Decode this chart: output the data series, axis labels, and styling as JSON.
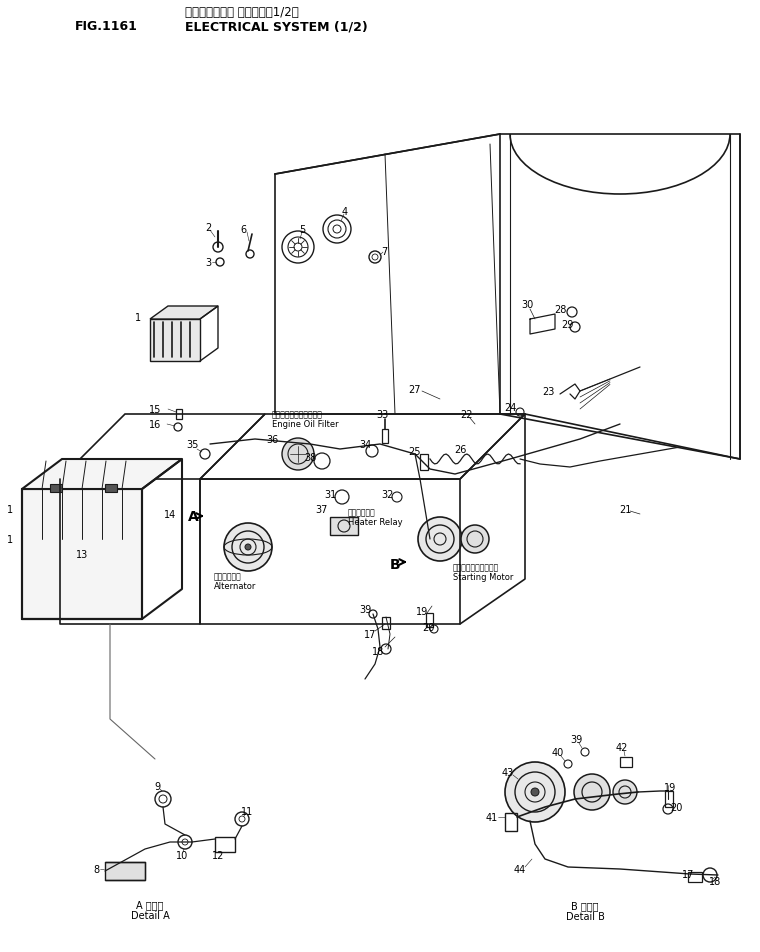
{
  "title_japanese": "エレクトリカル システム（1/2）",
  "title_english": "ELECTRICAL SYSTEM (1/2)",
  "fig_label": "FIG.1161",
  "background_color": "#ffffff",
  "line_color": "#1a1a1a",
  "text_color": "#000000",
  "labels": {
    "engine_oil_filter_jp": "エンジンオイルフィルタ",
    "engine_oil_filter_en": "Engine Oil Filter",
    "heater_relay_jp": "ヒータリレー",
    "heater_relay_en": "Heater Relay",
    "alternator_jp": "オルタネータ",
    "alternator_en": "Alternator",
    "starting_motor_jp": "スターティングモータ",
    "starting_motor_en": "Starting Motor",
    "detail_a_jp": "A 詳細図",
    "detail_a_en": "Detail A",
    "detail_b_jp": "B 詳細図",
    "detail_b_en": "Detail B"
  },
  "figsize": [
    7.6,
    9.53
  ],
  "dpi": 100
}
